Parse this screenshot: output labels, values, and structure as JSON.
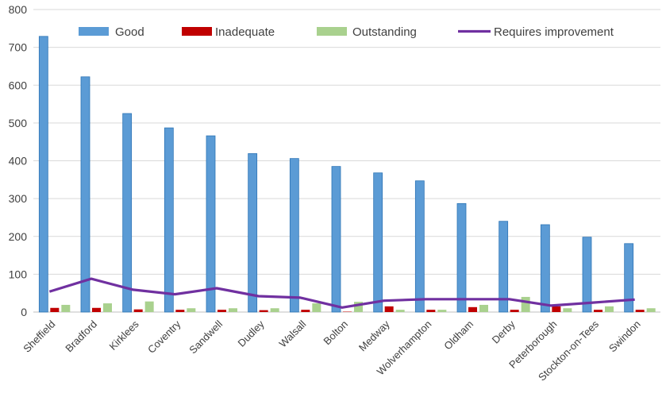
{
  "chart_data": {
    "type": "bar",
    "title": "",
    "xlabel": "",
    "ylabel": "",
    "ylim": [
      0,
      800
    ],
    "yticks": [
      0,
      100,
      200,
      300,
      400,
      500,
      600,
      700,
      800
    ],
    "grid": true,
    "legend_position": "top",
    "categories": [
      "Sheffield",
      "Bradford",
      "Kirklees",
      "Coventry",
      "Sandwell",
      "Dudley",
      "Walsall",
      "Bolton",
      "Medway",
      "Wolverhampton",
      "Oldham",
      "Derby",
      "Peterborough",
      "Stockton-on-Tees",
      "Swindon"
    ],
    "series": [
      {
        "name": "Good",
        "kind": "bar",
        "color": "#5b9bd5",
        "values": [
          729,
          622,
          525,
          487,
          466,
          419,
          406,
          385,
          368,
          347,
          287,
          240,
          231,
          198,
          181
        ]
      },
      {
        "name": "Inadequate",
        "kind": "bar",
        "color": "#c00000",
        "values": [
          11,
          11,
          7,
          6,
          6,
          5,
          6,
          1,
          15,
          6,
          13,
          6,
          15,
          6,
          6
        ]
      },
      {
        "name": "Outstanding",
        "kind": "bar",
        "color": "#a9d18e",
        "values": [
          19,
          23,
          28,
          10,
          10,
          10,
          23,
          27,
          6,
          6,
          19,
          40,
          10,
          15,
          10
        ]
      },
      {
        "name": "Requires improvement",
        "kind": "line",
        "color": "#7030a0",
        "values": [
          54,
          88,
          59,
          47,
          63,
          42,
          38,
          12,
          30,
          34,
          34,
          34,
          17,
          25,
          33
        ]
      }
    ]
  }
}
